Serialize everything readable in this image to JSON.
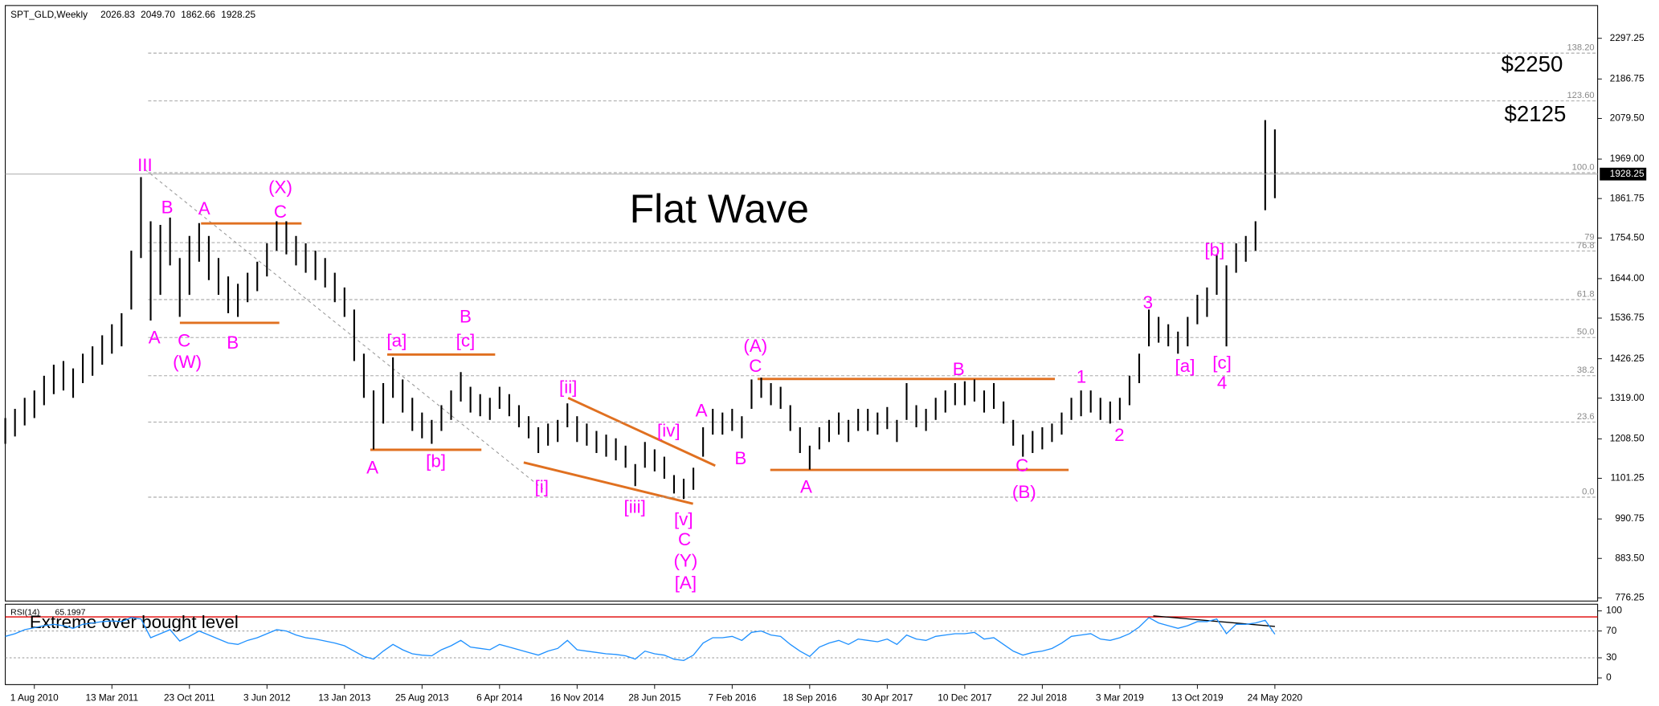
{
  "chart_data": {
    "type": "ohlc",
    "symbol": "SPT_GLD,Weekly",
    "last_bar": {
      "open": 2026.83,
      "high": {
        "value": 2049.7,
        "label": "2049.70"
      },
      "low": 1862.66,
      "close": 1928.25
    },
    "title": "Flat Wave",
    "targets": [
      "$2250",
      "$2125"
    ],
    "rsi_note": "Extreme over bought level",
    "categories": [
      null,
      null,
      null,
      "1 Aug 2010",
      null,
      null,
      null,
      null,
      null,
      null,
      null,
      "13 Mar 2011",
      null,
      null,
      null,
      null,
      null,
      null,
      null,
      "23 Oct 2011",
      null,
      null,
      null,
      null,
      null,
      null,
      null,
      "3 Jun 2012",
      null,
      null,
      null,
      null,
      null,
      null,
      null,
      "13 Jan 2013",
      null,
      null,
      null,
      null,
      null,
      null,
      null,
      "25 Aug 2013",
      null,
      null,
      null,
      null,
      null,
      null,
      null,
      "6 Apr 2014",
      null,
      null,
      null,
      null,
      null,
      null,
      null,
      "16 Nov 2014",
      null,
      null,
      null,
      null,
      null,
      null,
      null,
      "28 Jun 2015",
      null,
      null,
      null,
      null,
      null,
      null,
      null,
      "7 Feb 2016",
      null,
      null,
      null,
      null,
      null,
      null,
      null,
      "18 Sep 2016",
      null,
      null,
      null,
      null,
      null,
      null,
      null,
      "30 Apr 2017",
      null,
      null,
      null,
      null,
      null,
      null,
      null,
      "10 Dec 2017",
      null,
      null,
      null,
      null,
      null,
      null,
      null,
      "22 Jul 2018",
      null,
      null,
      null,
      null,
      null,
      null,
      null,
      "3 Mar 2019",
      null,
      null,
      null,
      null,
      null,
      null,
      null,
      "13 Oct 2019",
      null,
      null,
      null,
      null,
      null,
      null,
      null,
      "24 May 2020"
    ],
    "high": [
      1265,
      1290,
      1320,
      1340,
      1380,
      1410,
      1420,
      1400,
      1440,
      1460,
      1490,
      1520,
      1550,
      1720,
      1920,
      1800,
      1790,
      1810,
      1700,
      1760,
      1795,
      1760,
      1700,
      1650,
      1630,
      1660,
      1690,
      1740,
      1800,
      1800,
      1760,
      1740,
      1720,
      1700,
      1660,
      1620,
      1560,
      1440,
      1340,
      1360,
      1430,
      1370,
      1320,
      1280,
      1260,
      1300,
      1340,
      1390,
      1350,
      1330,
      1320,
      1350,
      1330,
      1300,
      1270,
      1240,
      1250,
      1260,
      1305,
      1270,
      1250,
      1230,
      1220,
      1210,
      1190,
      1140,
      1200,
      1180,
      1160,
      1110,
      1100,
      1130,
      1240,
      1290,
      1280,
      1290,
      1270,
      1370,
      1375,
      1360,
      1350,
      1300,
      1240,
      1190,
      1240,
      1260,
      1280,
      1260,
      1290,
      1290,
      1280,
      1295,
      1260,
      1360,
      1300,
      1290,
      1320,
      1340,
      1360,
      1365,
      1370,
      1340,
      1360,
      1310,
      1260,
      1220,
      1230,
      1240,
      1250,
      1280,
      1320,
      1340,
      1340,
      1320,
      1310,
      1320,
      1380,
      1440,
      1560,
      1540,
      1520,
      1500,
      1540,
      1600,
      1620,
      1710,
      1680,
      1740,
      1760,
      1800,
      2075,
      2049.7
    ],
    "low": [
      1195,
      1215,
      1245,
      1265,
      1300,
      1330,
      1340,
      1320,
      1360,
      1380,
      1410,
      1440,
      1460,
      1560,
      1700,
      1530,
      1600,
      1680,
      1540,
      1600,
      1690,
      1640,
      1600,
      1550,
      1540,
      1580,
      1610,
      1650,
      1720,
      1710,
      1680,
      1660,
      1640,
      1620,
      1580,
      1540,
      1420,
      1320,
      1180,
      1250,
      1320,
      1280,
      1230,
      1210,
      1195,
      1230,
      1260,
      1310,
      1280,
      1270,
      1260,
      1290,
      1270,
      1240,
      1210,
      1170,
      1190,
      1200,
      1240,
      1200,
      1190,
      1170,
      1160,
      1150,
      1130,
      1080,
      1130,
      1120,
      1100,
      1060,
      1045,
      1070,
      1160,
      1220,
      1220,
      1230,
      1210,
      1290,
      1320,
      1300,
      1290,
      1230,
      1170,
      1125,
      1180,
      1200,
      1220,
      1200,
      1230,
      1230,
      1220,
      1235,
      1200,
      1260,
      1240,
      1230,
      1260,
      1280,
      1300,
      1300,
      1310,
      1280,
      1290,
      1250,
      1190,
      1160,
      1170,
      1180,
      1200,
      1220,
      1260,
      1270,
      1280,
      1260,
      1250,
      1260,
      1300,
      1360,
      1460,
      1470,
      1460,
      1440,
      1460,
      1520,
      1540,
      1600,
      1460,
      1660,
      1690,
      1720,
      1830,
      1862.66
    ],
    "ylim": [
      767.6,
      2386.4
    ],
    "yticks": [
      2297.25,
      2186.75,
      {
        "value": 2079.5,
        "label": "2079.50"
      },
      {
        "value": 1969,
        "label": "1969.00"
      },
      1861.75,
      {
        "value": 1754.5,
        "label": "1754.50"
      },
      {
        "value": 1644,
        "label": "1644.00"
      },
      1536.75,
      1426.25,
      {
        "value": 1319,
        "label": "1319.00"
      },
      {
        "value": 1208.5,
        "label": "1208.50"
      },
      1101.25,
      990.75,
      {
        "value": 883.5,
        "label": "883.50"
      },
      776.25
    ],
    "fib_levels": [
      {
        "ratio": {
          "value": 138.2,
          "label": "138.20"
        },
        "price": 2257
      },
      {
        "ratio": {
          "value": 123.6,
          "label": "123.60"
        },
        "price": 2127
      },
      {
        "ratio": {
          "value": 100,
          "label": "100.0"
        },
        "price": 1932
      },
      {
        "ratio": 79,
        "price": 1742
      },
      {
        "ratio": 76.8,
        "price": 1719
      },
      {
        "ratio": 61.8,
        "price": 1587
      },
      {
        "ratio": {
          "value": 50,
          "label": "50.0"
        },
        "price": 1484
      },
      {
        "ratio": 38.2,
        "price": 1380
      },
      {
        "ratio": 23.6,
        "price": 1254
      },
      {
        "ratio": {
          "value": 0,
          "label": "0.0"
        },
        "price": 1050
      }
    ],
    "wave_labels": [
      "III",
      "B",
      "A",
      "(X)",
      "C",
      "A",
      "C",
      "(W)",
      "B",
      "[a]",
      "B",
      "[c]",
      "A",
      "[b]",
      "[ii]",
      "[iv]",
      "A",
      "B",
      "[i]",
      "[iii]",
      "[v]",
      "C",
      "(Y)",
      "[A]",
      "(A)",
      "C",
      "A",
      "B",
      "C",
      "(B)",
      "1",
      "2",
      "3",
      "[a]",
      "[b]",
      "[c]",
      "4"
    ],
    "rsi": {
      "name": "RSI(14)",
      "last": 65.1997,
      "values": [
        62,
        66,
        72,
        75,
        78,
        80,
        78,
        74,
        80,
        82,
        84,
        85,
        84,
        90,
        88,
        60,
        66,
        72,
        55,
        62,
        70,
        64,
        58,
        52,
        50,
        56,
        60,
        66,
        72,
        70,
        64,
        60,
        58,
        55,
        52,
        48,
        40,
        32,
        28,
        40,
        50,
        42,
        36,
        34,
        33,
        42,
        48,
        56,
        46,
        44,
        42,
        50,
        46,
        42,
        38,
        34,
        40,
        44,
        56,
        42,
        40,
        38,
        36,
        35,
        33,
        28,
        40,
        36,
        34,
        28,
        26,
        34,
        52,
        60,
        60,
        62,
        56,
        68,
        70,
        64,
        62,
        50,
        40,
        32,
        46,
        52,
        56,
        50,
        58,
        56,
        54,
        58,
        50,
        64,
        58,
        56,
        62,
        64,
        66,
        66,
        68,
        58,
        60,
        50,
        40,
        34,
        38,
        40,
        44,
        52,
        62,
        64,
        66,
        58,
        56,
        60,
        66,
        76,
        90,
        82,
        78,
        74,
        78,
        84,
        84,
        88,
        66,
        80,
        80,
        82,
        86,
        65.1997
      ],
      "color": "#1e90ff",
      "ylim": [
        -10,
        110
      ],
      "yticks": [
        100,
        70,
        30,
        0
      ]
    },
    "bar_color": "#000000",
    "wave_color": "#ff00ff",
    "trend_color": "#e07020"
  }
}
